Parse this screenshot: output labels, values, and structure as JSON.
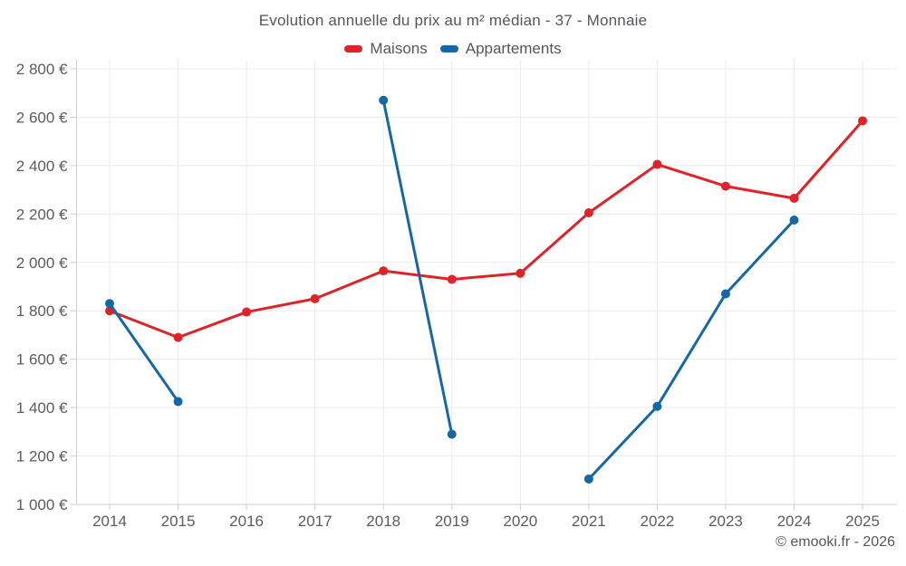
{
  "footer": "© emooki.fr - 2026",
  "chart_data": {
    "type": "line",
    "title": "Evolution annuelle du prix au m² médian - 37 - Monnaie",
    "categories": [
      "2014",
      "2015",
      "2016",
      "2017",
      "2018",
      "2019",
      "2020",
      "2021",
      "2022",
      "2023",
      "2024",
      "2025"
    ],
    "series": [
      {
        "name": "Maisons",
        "color": "#e02329",
        "values": [
          1800,
          1690,
          1795,
          1850,
          1965,
          1930,
          1955,
          2205,
          2405,
          2315,
          2265,
          2585
        ]
      },
      {
        "name": "Appartements",
        "color": "#1668a5",
        "values": [
          1830,
          1425,
          null,
          null,
          2670,
          1290,
          null,
          1105,
          1405,
          1870,
          2175,
          null
        ]
      }
    ],
    "ylabel": "",
    "xlabel": "",
    "ylim": [
      1000,
      2800
    ],
    "ytick_step": 200,
    "y_suffix": " €",
    "grid": true,
    "legend_position": "top",
    "colors": {
      "grid": "#ebebeb",
      "axis": "#cfcfcf",
      "tick_text": "#5a5c60"
    }
  }
}
